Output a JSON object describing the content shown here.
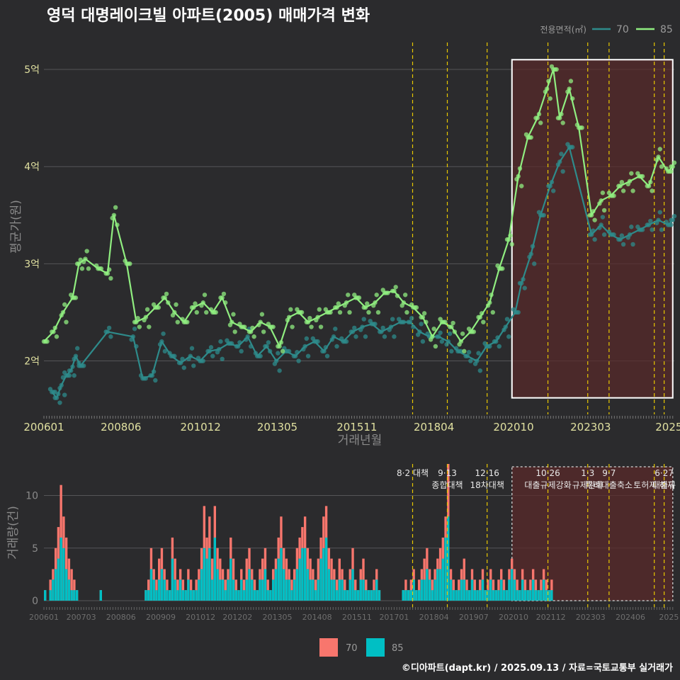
{
  "title": "영덕 대명레이크빌 아파트(2005) 매매가격 변화",
  "footer": "©디아파트(dapt.kr) / 2025.09.13 / 자료=국토교통부 실거래가",
  "colors": {
    "s70": "#2e8b8b",
    "s85": "#90ee80",
    "bar70": "#f8766d",
    "bar85": "#00bfc4",
    "vline": "#e8c800",
    "band": "#5a2a2a"
  },
  "chart_data": [
    {
      "type": "line",
      "title": "영덕 대명레이크빌 아파트(2005) 매매가격 변화",
      "xlabel": "거래년월",
      "ylabel": "평균가(원)",
      "legend_title": "전용면적(㎡)",
      "legend_position": "top-right",
      "xlim": [
        2006.0,
        2025.8
      ],
      "ylim": [
        1.45,
        5.35
      ],
      "x_ticks": [
        {
          "x": 2006.0,
          "label": "200601"
        },
        {
          "x": 2008.42,
          "label": "200806"
        },
        {
          "x": 2010.92,
          "label": "201012"
        },
        {
          "x": 2013.33,
          "label": "201305"
        },
        {
          "x": 2015.83,
          "label": "201511"
        },
        {
          "x": 2018.25,
          "label": "201804"
        },
        {
          "x": 2020.75,
          "label": "202010"
        },
        {
          "x": 2023.17,
          "label": "202303"
        },
        {
          "x": 2025.63,
          "label": "2025"
        }
      ],
      "y_ticks": [
        {
          "y": 2,
          "label": "2억"
        },
        {
          "y": 3,
          "label": "3억"
        },
        {
          "y": 4,
          "label": "4억"
        },
        {
          "y": 5,
          "label": "5억"
        }
      ],
      "policy_lines": [
        2017.58,
        2018.67,
        2019.92,
        2021.83,
        2023.08,
        2023.75,
        2025.17,
        2025.48
      ],
      "highlight_range": [
        2020.7,
        2025.75
      ],
      "highlight_y": [
        1.62,
        5.1
      ],
      "series": [
        {
          "name": "70",
          "x": [
            2006.25,
            2006.4,
            2006.55,
            2006.7,
            2006.85,
            2007.0,
            2007.15,
            2008.0,
            2008.8,
            2009.1,
            2009.4,
            2009.7,
            2010.0,
            2010.3,
            2010.6,
            2010.9,
            2011.2,
            2011.5,
            2011.8,
            2012.1,
            2012.4,
            2012.7,
            2013.0,
            2013.3,
            2013.6,
            2013.9,
            2014.2,
            2014.5,
            2014.8,
            2015.1,
            2015.4,
            2015.7,
            2016.0,
            2016.3,
            2016.6,
            2016.9,
            2017.2,
            2017.5,
            2017.8,
            2018.1,
            2018.4,
            2018.7,
            2019.0,
            2019.3,
            2019.6,
            2019.9,
            2020.2,
            2020.5,
            2020.8,
            2021.0,
            2021.3,
            2021.6,
            2021.9,
            2022.2,
            2022.5,
            2023.2,
            2023.5,
            2023.8,
            2024.1,
            2024.4,
            2024.7,
            2025.0,
            2025.3,
            2025.6,
            2025.75
          ],
          "y": [
            1.68,
            1.62,
            1.75,
            1.85,
            1.9,
            2.05,
            1.95,
            2.3,
            2.25,
            1.82,
            1.85,
            2.2,
            2.05,
            1.98,
            2.05,
            2.0,
            2.1,
            2.12,
            2.18,
            2.15,
            2.25,
            2.05,
            2.15,
            2.0,
            2.1,
            2.05,
            2.15,
            2.2,
            2.1,
            2.25,
            2.2,
            2.3,
            2.35,
            2.38,
            2.3,
            2.35,
            2.4,
            2.4,
            2.3,
            2.25,
            2.25,
            2.2,
            2.1,
            2.05,
            2.0,
            2.15,
            2.2,
            2.35,
            2.5,
            2.8,
            3.1,
            3.5,
            3.8,
            4.05,
            4.2,
            3.3,
            3.4,
            3.3,
            3.25,
            3.3,
            3.35,
            3.4,
            3.45,
            3.4,
            3.45
          ]
        },
        {
          "name": "85",
          "x": [
            2006.0,
            2006.3,
            2006.6,
            2006.9,
            2007.1,
            2007.3,
            2007.7,
            2008.0,
            2008.2,
            2008.6,
            2008.9,
            2009.2,
            2009.5,
            2009.8,
            2010.1,
            2010.4,
            2010.7,
            2011.0,
            2011.3,
            2011.6,
            2011.9,
            2012.2,
            2012.5,
            2012.8,
            2013.1,
            2013.4,
            2013.7,
            2014.0,
            2014.3,
            2014.6,
            2014.9,
            2015.2,
            2015.5,
            2015.8,
            2016.1,
            2016.4,
            2016.7,
            2017.0,
            2017.3,
            2017.6,
            2017.9,
            2018.2,
            2018.5,
            2018.8,
            2019.1,
            2019.4,
            2019.7,
            2020.0,
            2020.3,
            2020.6,
            2020.9,
            2021.2,
            2021.5,
            2021.8,
            2022.0,
            2022.2,
            2022.5,
            2022.8,
            2023.2,
            2023.5,
            2023.8,
            2024.1,
            2024.4,
            2024.7,
            2025.0,
            2025.3,
            2025.6,
            2025.75
          ],
          "y": [
            2.2,
            2.3,
            2.5,
            2.65,
            3.0,
            3.05,
            2.95,
            2.9,
            3.5,
            3.0,
            2.4,
            2.45,
            2.55,
            2.65,
            2.5,
            2.4,
            2.55,
            2.6,
            2.5,
            2.65,
            2.4,
            2.35,
            2.3,
            2.4,
            2.35,
            2.15,
            2.45,
            2.5,
            2.4,
            2.45,
            2.5,
            2.55,
            2.6,
            2.65,
            2.55,
            2.6,
            2.7,
            2.72,
            2.6,
            2.55,
            2.45,
            2.25,
            2.4,
            2.35,
            2.2,
            2.3,
            2.45,
            2.6,
            2.95,
            3.25,
            3.9,
            4.3,
            4.5,
            4.8,
            5.0,
            4.5,
            4.8,
            4.4,
            3.5,
            3.65,
            3.7,
            3.8,
            3.85,
            3.9,
            3.8,
            4.1,
            3.95,
            4.0
          ]
        }
      ]
    },
    {
      "type": "bar",
      "ylabel": "거래량(건)",
      "xlim": [
        2006.0,
        2025.8
      ],
      "ylim": [
        0,
        13
      ],
      "y_ticks": [
        {
          "y": 0,
          "label": "0"
        },
        {
          "y": 5,
          "label": "5"
        },
        {
          "y": 10,
          "label": "10"
        }
      ],
      "x_ticks": [
        {
          "x": 2006.0,
          "label": "200601"
        },
        {
          "x": 2007.17,
          "label": "200703"
        },
        {
          "x": 2008.42,
          "label": "200806"
        },
        {
          "x": 2009.67,
          "label": "200909"
        },
        {
          "x": 2010.92,
          "label": "201012"
        },
        {
          "x": 2012.08,
          "label": "201202"
        },
        {
          "x": 2013.33,
          "label": "201305"
        },
        {
          "x": 2014.58,
          "label": "201408"
        },
        {
          "x": 2015.83,
          "label": "201511"
        },
        {
          "x": 2017.0,
          "label": "201701"
        },
        {
          "x": 2018.25,
          "label": "201804"
        },
        {
          "x": 2019.5,
          "label": "201907"
        },
        {
          "x": 2020.75,
          "label": "202010"
        },
        {
          "x": 2021.92,
          "label": "202112"
        },
        {
          "x": 2023.17,
          "label": "202303"
        },
        {
          "x": 2024.42,
          "label": "202406"
        },
        {
          "x": 2025.63,
          "label": "2025"
        }
      ],
      "annotations": [
        {
          "x": 2017.58,
          "lines": [
            "8·2 대책"
          ]
        },
        {
          "x": 2018.67,
          "lines": [
            "9·13",
            "종합대책"
          ]
        },
        {
          "x": 2019.92,
          "lines": [
            "12·16",
            "18차대책"
          ]
        },
        {
          "x": 2021.83,
          "lines": [
            "10·26",
            "대출규제강화"
          ]
        },
        {
          "x": 2023.08,
          "lines": [
            "1·3",
            "규제완화"
          ]
        },
        {
          "x": 2023.75,
          "lines": [
            "9·7",
            "특례대출축소"
          ]
        },
        {
          "x": 2025.17,
          "lines": [
            "",
            "토허제 해제"
          ]
        },
        {
          "x": 2025.48,
          "lines": [
            "6·27",
            "대출규"
          ]
        }
      ],
      "legend": [
        {
          "name": "70"
        },
        {
          "name": "85"
        }
      ],
      "bins_start": 2006.0,
      "bins_step": 0.0833,
      "values70": [
        0,
        0,
        2,
        3,
        5,
        7,
        11,
        8,
        6,
        4,
        3,
        2,
        1,
        0,
        0,
        0,
        0,
        0,
        0,
        0,
        0,
        1,
        0,
        0,
        0,
        0,
        0,
        0,
        0,
        0,
        0,
        0,
        0,
        0,
        0,
        0,
        0,
        0,
        1,
        2,
        5,
        3,
        2,
        4,
        5,
        3,
        2,
        1,
        6,
        4,
        2,
        3,
        2,
        1,
        3,
        2,
        1,
        2,
        3,
        5,
        9,
        6,
        8,
        4,
        9,
        5,
        4,
        3,
        2,
        3,
        6,
        4,
        2,
        1,
        3,
        2,
        4,
        5,
        3,
        2,
        1,
        3,
        4,
        5,
        2,
        1,
        3,
        4,
        6,
        8,
        5,
        4,
        3,
        2,
        3,
        5,
        6,
        7,
        8,
        5,
        4,
        3,
        2,
        4,
        6,
        8,
        9,
        5,
        4,
        3,
        2,
        4,
        3,
        2,
        1,
        3,
        5,
        2,
        1,
        3,
        4,
        2,
        1,
        1,
        2,
        3,
        1,
        0,
        0,
        0,
        0,
        0,
        0,
        0,
        0,
        1,
        2,
        1,
        2,
        3,
        1,
        2,
        3,
        4,
        5,
        3,
        2,
        3,
        4,
        5,
        6,
        8,
        13,
        3,
        2,
        1,
        2,
        3,
        4,
        2,
        1,
        3,
        2,
        1,
        2,
        3,
        1,
        2,
        3,
        2,
        1,
        2,
        3,
        2,
        1,
        3,
        4,
        3,
        2,
        1,
        3,
        2,
        1,
        2,
        3,
        2,
        1,
        2,
        3,
        2,
        1,
        2
      ],
      "values85": [
        1,
        0,
        1,
        2,
        3,
        4,
        6,
        5,
        3,
        2,
        1,
        1,
        1,
        0,
        0,
        0,
        0,
        0,
        0,
        0,
        0,
        1,
        0,
        0,
        0,
        0,
        0,
        0,
        0,
        0,
        0,
        0,
        0,
        0,
        0,
        0,
        0,
        0,
        1,
        1,
        3,
        2,
        1,
        2,
        3,
        2,
        1,
        1,
        4,
        2,
        1,
        2,
        1,
        1,
        2,
        1,
        1,
        1,
        2,
        3,
        5,
        4,
        5,
        2,
        6,
        3,
        2,
        2,
        1,
        2,
        4,
        2,
        1,
        1,
        2,
        1,
        2,
        3,
        2,
        1,
        1,
        2,
        2,
        3,
        1,
        1,
        2,
        3,
        4,
        5,
        3,
        2,
        2,
        1,
        2,
        3,
        4,
        5,
        5,
        3,
        2,
        2,
        1,
        2,
        4,
        5,
        6,
        3,
        2,
        2,
        1,
        2,
        2,
        1,
        1,
        2,
        3,
        1,
        1,
        2,
        2,
        1,
        1,
        1,
        1,
        2,
        1,
        0,
        0,
        0,
        0,
        0,
        0,
        0,
        0,
        1,
        1,
        1,
        1,
        2,
        1,
        1,
        2,
        2,
        3,
        2,
        1,
        2,
        3,
        3,
        4,
        6,
        8,
        2,
        1,
        1,
        1,
        2,
        2,
        1,
        1,
        2,
        1,
        1,
        1,
        2,
        1,
        1,
        2,
        1,
        1,
        1,
        2,
        1,
        1,
        2,
        3,
        2,
        1,
        1,
        2,
        1,
        1,
        1,
        2,
        1,
        1,
        1,
        2,
        1,
        1,
        1
      ]
    }
  ]
}
